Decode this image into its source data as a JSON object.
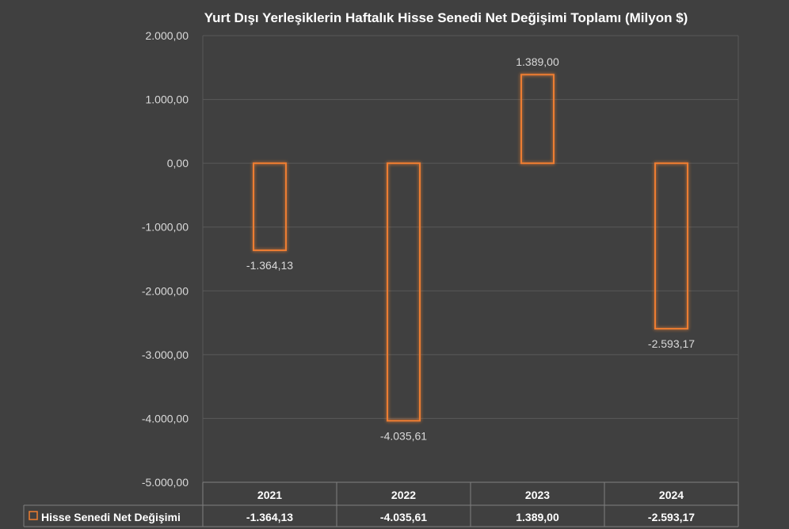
{
  "chart_data": {
    "type": "bar",
    "title": "Yurt Dışı Yerleşiklerin Haftalık Hisse Senedi Net Değişimi Toplamı (Milyon $)",
    "categories": [
      "2021",
      "2022",
      "2023",
      "2024"
    ],
    "series": [
      {
        "name": "Hisse Senedi Net Değişimi",
        "values": [
          -1364.13,
          -4035.61,
          1389.0,
          -2593.17
        ],
        "labels": [
          "-1.364,13",
          "-4.035,61",
          "1.389,00",
          "-2.593,17"
        ],
        "table_labels": [
          "-1.364,13",
          "-4.035,61",
          "1.389,00",
          "-2.593,17"
        ]
      }
    ],
    "ylim": [
      -5000,
      2000
    ],
    "yticks": [
      2000,
      1000,
      0,
      -1000,
      -2000,
      -3000,
      -4000,
      -5000
    ],
    "ytick_labels": [
      "2.000,00",
      "1.000,00",
      "0,00",
      "-1.000,00",
      "-2.000,00",
      "-3.000,00",
      "-4.000,00",
      "-5.000,00"
    ],
    "grid": true,
    "legend": "data-table",
    "colors": {
      "background": "#404040",
      "bar_edge": "#ed7d31",
      "gridline": "#595959",
      "table_border": "#7f7f7f"
    }
  }
}
